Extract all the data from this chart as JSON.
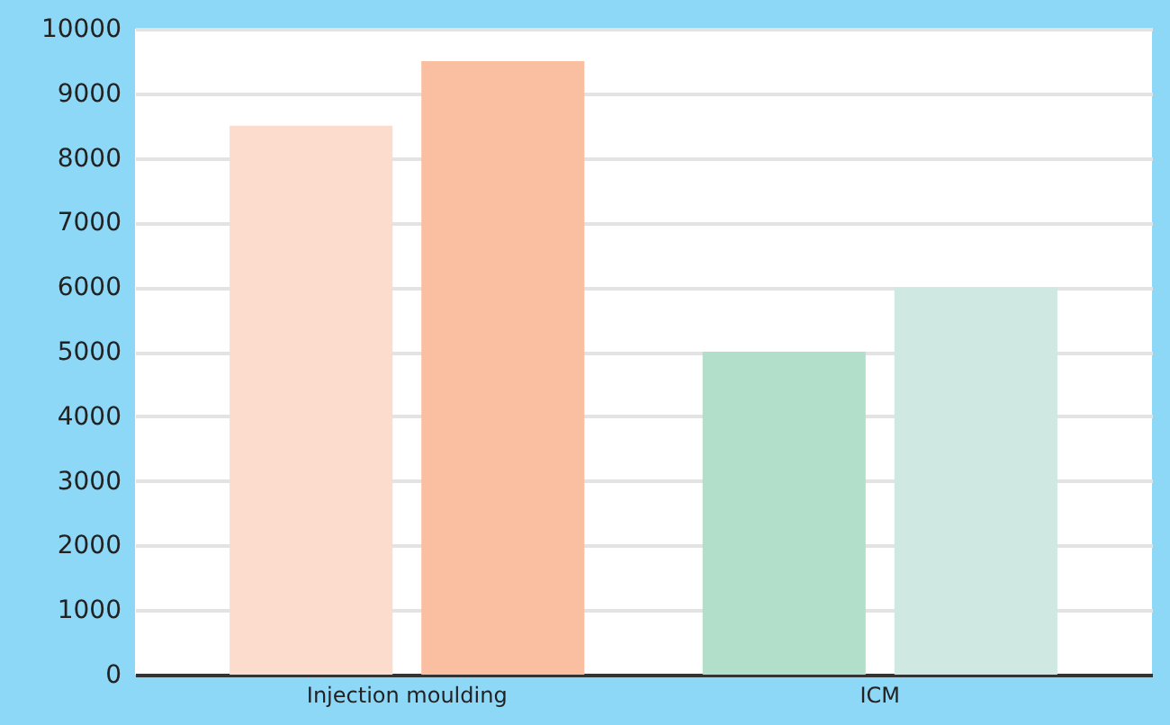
{
  "chart_data": {
    "type": "bar",
    "categories": [
      "Injection moulding",
      "ICM"
    ],
    "series": [
      {
        "colors": [
          "#fcdccc",
          "#b2dfca"
        ],
        "values": [
          8500,
          5000
        ]
      },
      {
        "colors": [
          "#f9bfa0",
          "#cfe9e2"
        ],
        "values": [
          9500,
          6000
        ]
      }
    ],
    "ylim": [
      0,
      10000
    ],
    "yticks": [
      0,
      1000,
      2000,
      3000,
      4000,
      5000,
      6000,
      7000,
      8000,
      9000,
      10000
    ],
    "grid": "y"
  }
}
